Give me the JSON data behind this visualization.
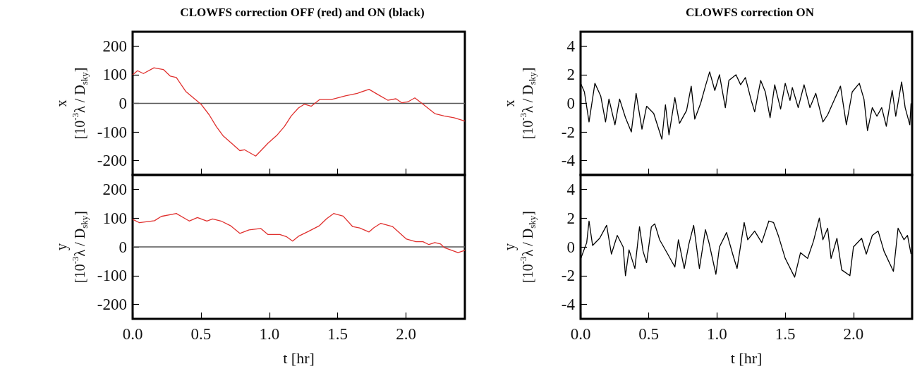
{
  "chart_data": [
    {
      "type": "line",
      "title": "CLOWFS correction OFF (red) and ON (black)",
      "ylabel": "x\n[10$^{-3}$λ / D$_{sky}$]",
      "xlim": [
        0,
        2.43
      ],
      "xticks": [
        {
          "value": 0,
          "label": null
        },
        {
          "value": 0.5,
          "label": null
        },
        {
          "value": 1,
          "label": null
        },
        {
          "value": 1.5,
          "label": null
        },
        {
          "value": 2,
          "label": null
        }
      ],
      "ylim": [
        -250,
        250
      ],
      "yticks": [
        -200,
        -100,
        0,
        100,
        200
      ],
      "tick_labels": "y",
      "series": [
        {
          "color": "#555555",
          "x": [
            0,
            0.5,
            1,
            1.5,
            2,
            2.43
          ],
          "values": [
            0,
            0,
            0,
            0,
            0,
            0
          ]
        },
        {
          "color": "#e0312f",
          "x": [
            0,
            0.036,
            0.079,
            0.156,
            0.225,
            0.276,
            0.32,
            0.388,
            0.44,
            0.5,
            0.56,
            0.612,
            0.663,
            0.732,
            0.784,
            0.818,
            0.9,
            0.99,
            1.058,
            1.11,
            1.16,
            1.213,
            1.256,
            1.307,
            1.367,
            1.453,
            1.556,
            1.643,
            1.729,
            1.797,
            1.866,
            1.926,
            1.969,
            2.012,
            2.064,
            2.124,
            2.21,
            2.278,
            2.35,
            2.43
          ],
          "values": [
            100,
            114,
            104,
            124,
            118,
            95,
            90,
            42,
            21,
            -3,
            -40,
            -81,
            -114,
            -143,
            -165,
            -162,
            -184,
            -139,
            -110,
            -81,
            -44,
            -16,
            -3,
            -10,
            13,
            13,
            26,
            35,
            49,
            30,
            11,
            16,
            2,
            5,
            19,
            -3,
            -36,
            -44,
            -50,
            -62
          ]
        }
      ]
    },
    {
      "type": "line",
      "ylabel": "y\n[10$^{-3}$λ / D$_{sky}$]",
      "xlabel": "t [hr]",
      "xlim": [
        0,
        2.43
      ],
      "xticks": [
        {
          "value": 0,
          "label": "0.0"
        },
        {
          "value": 0.5,
          "label": "0.5"
        },
        {
          "value": 1,
          "label": "1.0"
        },
        {
          "value": 1.5,
          "label": "1.5"
        },
        {
          "value": 2,
          "label": "2.0"
        }
      ],
      "ylim": [
        -250,
        250
      ],
      "yticks": [
        -200,
        -100,
        0,
        100,
        200
      ],
      "series": [
        {
          "color": "#555555",
          "x": [
            0,
            0.5,
            1,
            1.5,
            2,
            2.43
          ],
          "values": [
            0,
            0,
            0,
            0,
            0,
            0
          ]
        },
        {
          "color": "#e0312f",
          "x": [
            0,
            0.05,
            0.16,
            0.21,
            0.32,
            0.414,
            0.474,
            0.543,
            0.585,
            0.646,
            0.715,
            0.784,
            0.852,
            0.938,
            0.99,
            1.076,
            1.127,
            1.17,
            1.213,
            1.282,
            1.367,
            1.419,
            1.47,
            1.54,
            1.608,
            1.66,
            1.729,
            1.763,
            1.815,
            1.9,
            2.003,
            2.072,
            2.124,
            2.167,
            2.21,
            2.253,
            2.278,
            2.38,
            2.43
          ],
          "values": [
            96,
            84,
            91,
            106,
            116,
            90,
            102,
            90,
            97,
            90,
            74,
            47,
            59,
            64,
            43,
            43,
            35,
            20,
            37,
            53,
            74,
            98,
            116,
            107,
            71,
            66,
            52,
            66,
            82,
            71,
            27,
            18,
            18,
            8,
            15,
            10,
            -2,
            -20,
            -12
          ]
        }
      ]
    },
    {
      "type": "line",
      "title": "CLOWFS correction ON",
      "ylabel": "x\n[10$^{-3}$λ / D$_{sky}$]",
      "xlim": [
        0,
        2.43
      ],
      "xticks": [
        {
          "value": 0,
          "label": null
        },
        {
          "value": 0.5,
          "label": null
        },
        {
          "value": 1,
          "label": null
        },
        {
          "value": 1.5,
          "label": null
        },
        {
          "value": 2,
          "label": null
        }
      ],
      "ylim": [
        -5,
        5
      ],
      "yticks": [
        -4,
        -2,
        0,
        2,
        4
      ],
      "tick_labels": "y",
      "series": [
        {
          "color": "#000000",
          "x": [
            0,
            0.028,
            0.062,
            0.105,
            0.148,
            0.183,
            0.208,
            0.252,
            0.286,
            0.329,
            0.372,
            0.407,
            0.45,
            0.484,
            0.536,
            0.596,
            0.622,
            0.648,
            0.691,
            0.725,
            0.777,
            0.811,
            0.837,
            0.88,
            0.915,
            0.946,
            0.984,
            1.018,
            1.061,
            1.087,
            1.139,
            1.173,
            1.208,
            1.251,
            1.276,
            1.32,
            1.354,
            1.389,
            1.423,
            1.466,
            1.5,
            1.535,
            1.552,
            1.595,
            1.638,
            1.681,
            1.724,
            1.776,
            1.811,
            1.862,
            1.905,
            1.948,
            1.991,
            2.043,
            2.077,
            2.103,
            2.138,
            2.172,
            2.207,
            2.241,
            2.284,
            2.31,
            2.353,
            2.379,
            2.413,
            2.422
          ],
          "values": [
            1.4,
            0.8,
            -1.3,
            1.4,
            0.5,
            -1.3,
            0.3,
            -1.5,
            0.3,
            -1.0,
            -2.0,
            0.7,
            -1.8,
            -0.2,
            -0.7,
            -2.5,
            -0.1,
            -2.2,
            0.4,
            -1.4,
            -0.5,
            1.2,
            -1.1,
            0,
            1.2,
            2.2,
            0.9,
            2.0,
            -0.3,
            1.6,
            2.0,
            1.3,
            1.8,
            0.2,
            -0.6,
            1.6,
            0.8,
            -1.0,
            1.3,
            -0.4,
            1.4,
            0.2,
            1.1,
            -0.3,
            1.3,
            -0.3,
            0.7,
            -1.3,
            -0.8,
            0.3,
            1.2,
            -1.5,
            0.8,
            1.4,
            0.3,
            -1.9,
            -0.3,
            -0.9,
            -0.3,
            -1.6,
            0.9,
            -0.9,
            1.5,
            -0.3,
            -1.5,
            0
          ]
        }
      ]
    },
    {
      "type": "line",
      "ylabel": "y\n[10$^{-3}$λ / D$_{sky}$]",
      "xlabel": "t [hr]",
      "xlim": [
        0,
        2.43
      ],
      "xticks": [
        {
          "value": 0,
          "label": "0.0"
        },
        {
          "value": 0.5,
          "label": "0.5"
        },
        {
          "value": 1,
          "label": "1.0"
        },
        {
          "value": 1.5,
          "label": "1.5"
        },
        {
          "value": 2,
          "label": "2.0"
        }
      ],
      "ylim": [
        -5,
        5
      ],
      "yticks": [
        -4,
        -2,
        0,
        2,
        4
      ],
      "series": [
        {
          "color": "#000000",
          "x": [
            0.002,
            0.045,
            0.062,
            0.088,
            0.14,
            0.191,
            0.226,
            0.269,
            0.312,
            0.329,
            0.355,
            0.398,
            0.432,
            0.458,
            0.484,
            0.519,
            0.544,
            0.579,
            0.639,
            0.691,
            0.717,
            0.76,
            0.794,
            0.829,
            0.871,
            0.915,
            0.941,
            0.992,
            1.018,
            1.07,
            1.121,
            1.147,
            1.199,
            1.225,
            1.276,
            1.328,
            1.38,
            1.414,
            1.449,
            1.5,
            1.569,
            1.612,
            1.664,
            1.707,
            1.75,
            1.776,
            1.811,
            1.836,
            1.879,
            1.914,
            1.974,
            2.0,
            2.06,
            2.094,
            2.138,
            2.181,
            2.224,
            2.293,
            2.327,
            2.37,
            2.396,
            2.422
          ],
          "values": [
            -0.8,
            0.3,
            1.8,
            0.1,
            0.6,
            1.5,
            -0.5,
            0.8,
            0.0,
            -2.0,
            -0.2,
            -1.5,
            1.4,
            -0.3,
            -1.1,
            1.4,
            1.6,
            0.5,
            -0.5,
            -1.4,
            0.5,
            -1.5,
            0.2,
            1.5,
            -1.5,
            1.2,
            0.3,
            -1.9,
            0,
            1,
            -0.7,
            -1.5,
            1.7,
            0.5,
            1.1,
            0.3,
            1.8,
            1.7,
            0.8,
            -0.8,
            -2.1,
            -0.4,
            -0.8,
            0.4,
            2.0,
            0.5,
            1.3,
            -0.8,
            0.6,
            -1.6,
            -2.0,
            0,
            0.6,
            -0.5,
            0.8,
            1.1,
            -0.3,
            -1.7,
            1.3,
            0.5,
            0.8,
            -0.5
          ]
        }
      ]
    }
  ]
}
